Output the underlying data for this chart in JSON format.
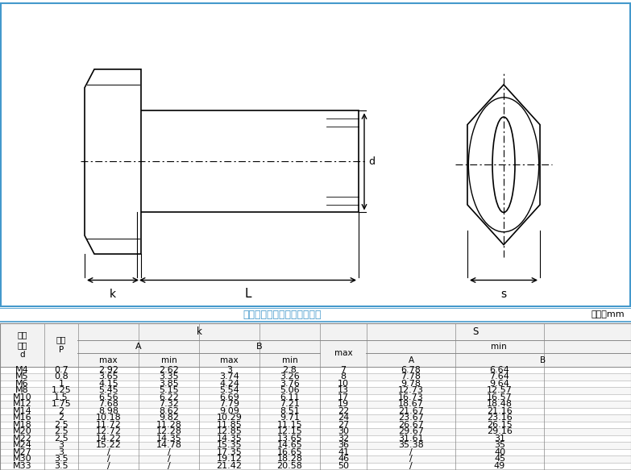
{
  "title_text": "对公差要求特别高的客户慎拍",
  "unit_text": "单位：mm",
  "bg_color": "#ffffff",
  "blue_color": "#4499cc",
  "rows": [
    [
      "M4",
      "0.7",
      "2.92",
      "2.62",
      "3",
      "2.8",
      "7",
      "6.78",
      "6.64"
    ],
    [
      "M5",
      "0.8",
      "3.65",
      "3.35",
      "3.74",
      "3.26",
      "8",
      "7.78",
      "7.64"
    ],
    [
      "M6",
      "1",
      "4.15",
      "3.85",
      "4.24",
      "3.76",
      "10",
      "9.78",
      "9.64"
    ],
    [
      "M8",
      "1.25",
      "5.45",
      "5.15",
      "5.54",
      "5.06",
      "13",
      "12.73",
      "12.57"
    ],
    [
      "M10",
      "1.5",
      "6.56",
      "6.22",
      "6.69",
      "6.11",
      "17",
      "16.73",
      "16.57"
    ],
    [
      "M12",
      "1.75",
      "7.68",
      "7.32",
      "7.79",
      "7.21",
      "19",
      "18.67",
      "18.48"
    ],
    [
      "M14",
      "2",
      "8.98",
      "8.62",
      "9.09",
      "8.51",
      "22",
      "21.67",
      "21.16"
    ],
    [
      "M16",
      "2",
      "10.18",
      "9.82",
      "10.29",
      "9.71",
      "24",
      "23.67",
      "23.16"
    ],
    [
      "M18",
      "2.5",
      "11.72",
      "11.28",
      "11.85",
      "11.15",
      "27",
      "26.67",
      "26.15"
    ],
    [
      "M20",
      "2.5",
      "12.72",
      "12.28",
      "12.85",
      "12.15",
      "30",
      "29.67",
      "29.16"
    ],
    [
      "M22",
      "2.5",
      "14.22",
      "14.35",
      "14.35",
      "13.65",
      "32",
      "31.61",
      "31"
    ],
    [
      "M24",
      "3",
      "15.22",
      "14.78",
      "15.35",
      "14.65",
      "36",
      "35.38",
      "35"
    ],
    [
      "M27",
      "3",
      "/",
      "/",
      "17.35",
      "16.65",
      "41",
      "/",
      "40"
    ],
    [
      "M30",
      "3.5",
      "/",
      "/",
      "19.12",
      "18.28",
      "46",
      "/",
      "45"
    ],
    [
      "M33",
      "3.5",
      "/",
      "/",
      "21.42",
      "20.58",
      "50",
      "/",
      "49"
    ]
  ]
}
